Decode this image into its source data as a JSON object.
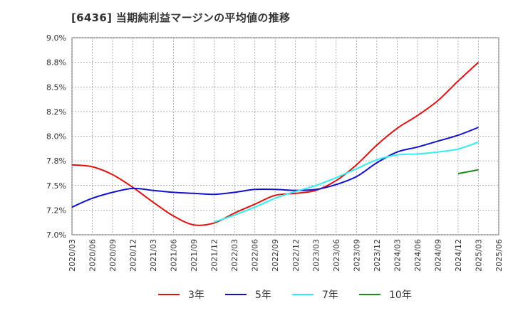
{
  "title": "[6436]  当期純利益マージンの平均値の推移",
  "chart_data": {
    "type": "line",
    "title": "[6436]  当期純利益マージンの平均値の推移",
    "xlabel": "",
    "ylabel": "",
    "ylim": [
      7.0,
      9.0
    ],
    "yticks": [
      "9.0%",
      "8.8%",
      "8.5%",
      "8.2%",
      "8.0%",
      "7.8%",
      "7.5%",
      "7.2%",
      "7.0%"
    ],
    "ytick_values": [
      9.0,
      8.75,
      8.5,
      8.25,
      8.0,
      7.75,
      7.5,
      7.25,
      7.0
    ],
    "x": [
      "2020/03",
      "2020/06",
      "2020/09",
      "2020/12",
      "2021/03",
      "2021/06",
      "2021/09",
      "2021/12",
      "2022/03",
      "2022/06",
      "2022/09",
      "2022/12",
      "2023/03",
      "2023/06",
      "2023/09",
      "2023/12",
      "2024/03",
      "2024/06",
      "2024/09",
      "2024/12",
      "2025/03",
      "2025/06"
    ],
    "grid": true,
    "legend_position": "bottom",
    "series": [
      {
        "name": "3年",
        "color": "#dd1111",
        "values": [
          7.71,
          7.69,
          7.61,
          7.48,
          7.33,
          7.19,
          7.1,
          7.12,
          7.22,
          7.31,
          7.4,
          7.42,
          7.45,
          7.55,
          7.71,
          7.91,
          8.08,
          8.21,
          8.36,
          8.56,
          8.75,
          null
        ]
      },
      {
        "name": "5年",
        "color": "#1111cc",
        "values": [
          7.28,
          7.37,
          7.43,
          7.47,
          7.45,
          7.43,
          7.42,
          7.41,
          7.43,
          7.46,
          7.46,
          7.45,
          7.46,
          7.51,
          7.59,
          7.73,
          7.84,
          7.89,
          7.95,
          8.01,
          8.09,
          null
        ]
      },
      {
        "name": "7年",
        "color": "#33eeee",
        "values": [
          null,
          null,
          null,
          null,
          null,
          null,
          null,
          7.13,
          7.2,
          7.28,
          7.37,
          7.44,
          7.5,
          7.58,
          7.67,
          7.76,
          7.81,
          7.82,
          7.84,
          7.87,
          7.94,
          null
        ]
      },
      {
        "name": "10年",
        "color": "#228822",
        "values": [
          null,
          null,
          null,
          null,
          null,
          null,
          null,
          null,
          null,
          null,
          null,
          null,
          null,
          null,
          null,
          null,
          null,
          null,
          null,
          null,
          7.66,
          null
        ]
      }
    ],
    "extra_points": {
      "10年": {
        "x": "2024/12",
        "y": 7.62
      }
    }
  }
}
